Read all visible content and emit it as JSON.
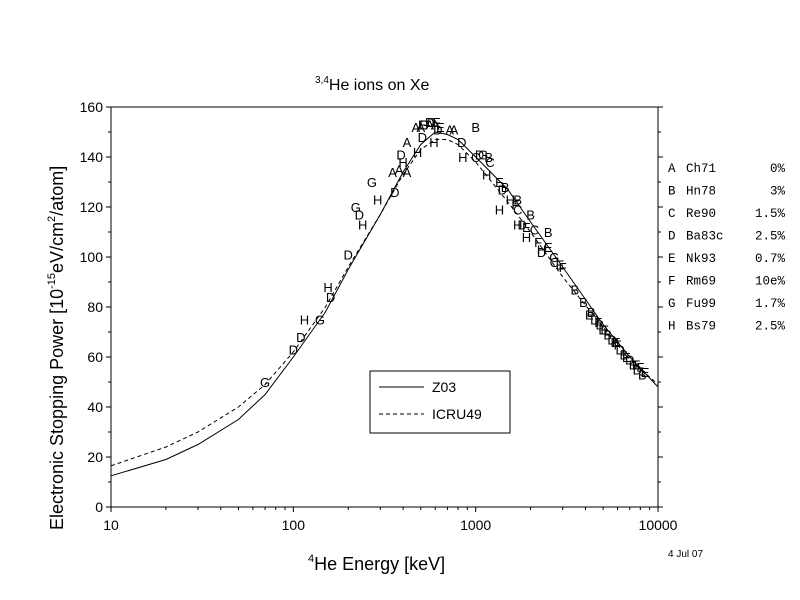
{
  "chart_data": {
    "type": "scatter",
    "title_main": "He ions on Xe",
    "title_sup": "3,4",
    "xlabel_main": "He Energy [keV]",
    "xlabel_sup": "4",
    "ylabel": "Electronic Stopping Power [10",
    "ylabel_exp1": "-15",
    "ylabel_mid": "eV/cm",
    "ylabel_exp2": "2",
    "ylabel_end": "/atom]",
    "x_scale": "log",
    "xlim": [
      10,
      10000
    ],
    "ylim": [
      0,
      160
    ],
    "x_ticks": [
      "10",
      "100",
      "1000",
      "10000"
    ],
    "y_ticks": [
      "0",
      "20",
      "40",
      "60",
      "80",
      "100",
      "120",
      "140",
      "160"
    ],
    "date_note": "4 Jul 07",
    "legend": {
      "placement": "lower-middle",
      "entries": [
        {
          "label": "Z03",
          "style": "solid"
        },
        {
          "label": "ICRU49",
          "style": "dashed"
        }
      ]
    },
    "curves": [
      {
        "name": "Z03",
        "style": "solid",
        "points": [
          [
            10,
            12.5
          ],
          [
            20,
            19
          ],
          [
            30,
            25
          ],
          [
            50,
            35
          ],
          [
            70,
            45
          ],
          [
            100,
            60
          ],
          [
            150,
            78
          ],
          [
            200,
            95
          ],
          [
            300,
            117
          ],
          [
            400,
            134
          ],
          [
            500,
            145
          ],
          [
            600,
            150
          ],
          [
            700,
            149
          ],
          [
            800,
            147
          ],
          [
            1000,
            140
          ],
          [
            1500,
            127
          ],
          [
            2000,
            114
          ],
          [
            3000,
            96
          ],
          [
            5000,
            73
          ],
          [
            7000,
            60
          ],
          [
            10000,
            48
          ]
        ]
      },
      {
        "name": "ICRU49",
        "style": "dashed",
        "points": [
          [
            10,
            16.5
          ],
          [
            20,
            24
          ],
          [
            30,
            30
          ],
          [
            50,
            40
          ],
          [
            70,
            49
          ],
          [
            100,
            62
          ],
          [
            150,
            80
          ],
          [
            200,
            96
          ],
          [
            300,
            117
          ],
          [
            400,
            133
          ],
          [
            500,
            143
          ],
          [
            600,
            147
          ],
          [
            700,
            147
          ],
          [
            800,
            145
          ],
          [
            1000,
            138
          ],
          [
            1500,
            122
          ],
          [
            2000,
            110
          ],
          [
            3000,
            92
          ],
          [
            5000,
            72
          ],
          [
            7000,
            59
          ],
          [
            10000,
            49
          ]
        ]
      }
    ],
    "series": [
      {
        "name": "A",
        "points": [
          [
            420,
            146
          ],
          [
            470,
            152
          ],
          [
            500,
            152
          ],
          [
            560,
            153
          ],
          [
            600,
            153
          ],
          [
            720,
            151
          ],
          [
            760,
            151
          ],
          [
            380,
            135
          ],
          [
            420,
            134
          ],
          [
            350,
            134
          ]
        ]
      },
      {
        "name": "B",
        "points": [
          [
            1000,
            152
          ],
          [
            1180,
            140
          ],
          [
            1450,
            128
          ],
          [
            1700,
            123
          ],
          [
            2000,
            117
          ],
          [
            2500,
            110
          ],
          [
            3500,
            87
          ],
          [
            3900,
            82
          ],
          [
            4300,
            78
          ],
          [
            4800,
            73
          ],
          [
            5300,
            69
          ],
          [
            5800,
            66
          ],
          [
            6500,
            61
          ],
          [
            7300,
            57
          ],
          [
            8200,
            53
          ]
        ]
      },
      {
        "name": "C",
        "points": [
          [
            570,
            154
          ],
          [
            1000,
            140
          ],
          [
            1200,
            138
          ],
          [
            1700,
            119
          ],
          [
            2100,
            111
          ],
          [
            2700,
            98
          ]
        ]
      },
      {
        "name": "D",
        "points": [
          [
            560,
            154
          ],
          [
            510,
            148
          ],
          [
            620,
            151
          ],
          [
            840,
            146
          ],
          [
            1050,
            141
          ],
          [
            390,
            141
          ],
          [
            360,
            126
          ],
          [
            230,
            117
          ],
          [
            200,
            101
          ],
          [
            160,
            84
          ],
          [
            110,
            68
          ],
          [
            100,
            63
          ],
          [
            1400,
            127
          ],
          [
            1800,
            113
          ],
          [
            2300,
            102
          ],
          [
            4500,
            75
          ],
          [
            5000,
            71
          ],
          [
            5600,
            67
          ],
          [
            6200,
            63
          ],
          [
            7000,
            59
          ],
          [
            7700,
            55
          ]
        ]
      },
      {
        "name": "E",
        "points": [
          [
            510,
            153
          ],
          [
            640,
            152
          ],
          [
            1350,
            130
          ],
          [
            1900,
            112
          ],
          [
            2500,
            104
          ],
          [
            2900,
            97
          ],
          [
            4200,
            77
          ],
          [
            5100,
            71
          ],
          [
            5900,
            66
          ],
          [
            6700,
            60
          ],
          [
            7600,
            57
          ],
          [
            8500,
            54
          ]
        ]
      },
      {
        "name": "F",
        "points": [
          [
            610,
            154
          ],
          [
            1650,
            121
          ],
          [
            2200,
            106
          ],
          [
            3000,
            96
          ],
          [
            4700,
            74
          ],
          [
            6000,
            65
          ],
          [
            8000,
            56
          ]
        ]
      },
      {
        "name": "G",
        "points": [
          [
            70,
            50
          ],
          [
            140,
            75
          ],
          [
            220,
            120
          ],
          [
            270,
            130
          ],
          [
            520,
            153
          ],
          [
            1100,
            141
          ],
          [
            2700,
            100
          ]
        ]
      },
      {
        "name": "H",
        "points": [
          [
            115,
            75
          ],
          [
            155,
            88
          ],
          [
            240,
            113
          ],
          [
            290,
            123
          ],
          [
            400,
            138
          ],
          [
            480,
            142
          ],
          [
            590,
            146
          ],
          [
            850,
            140
          ],
          [
            1150,
            133
          ],
          [
            1350,
            119
          ],
          [
            1550,
            123
          ],
          [
            1700,
            113
          ],
          [
            1900,
            108
          ],
          [
            2300,
            103
          ]
        ]
      }
    ],
    "references": [
      {
        "letter": "A",
        "code": "Ch71",
        "error": "0%"
      },
      {
        "letter": "B",
        "code": "Hn78",
        "error": "3%"
      },
      {
        "letter": "C",
        "code": "Re90",
        "error": "1.5%"
      },
      {
        "letter": "D",
        "code": "Ba83c",
        "error": "2.5%"
      },
      {
        "letter": "E",
        "code": "Nk93",
        "error": "0.7%"
      },
      {
        "letter": "F",
        "code": "Rm69",
        "error": "10e%"
      },
      {
        "letter": "G",
        "code": "Fu99",
        "error": "1.7%"
      },
      {
        "letter": "H",
        "code": "Bs79",
        "error": "2.5%"
      }
    ]
  }
}
